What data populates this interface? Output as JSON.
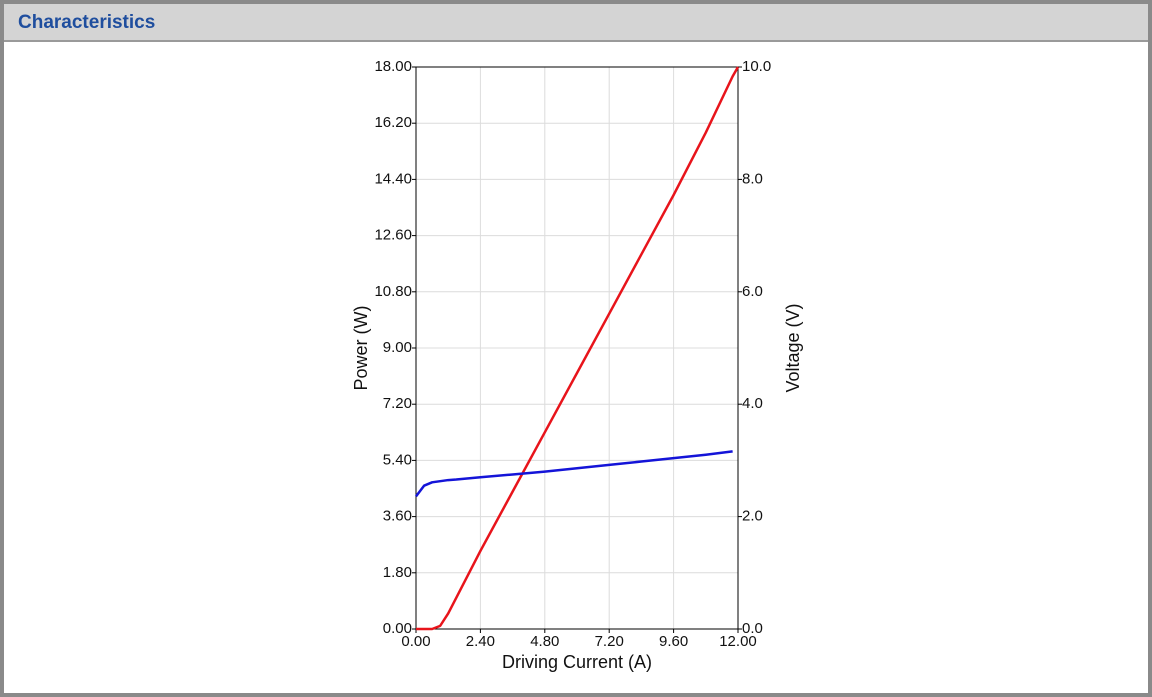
{
  "panel": {
    "title": "Characteristics"
  },
  "chart_data": {
    "type": "line",
    "x_label": "Driving Current (A)",
    "y_label": "Power (W)",
    "y2_label": "Voltage (V)",
    "x": [
      0,
      0.3,
      0.6,
      0.9,
      1.2,
      1.5,
      2.4,
      3.6,
      4.8,
      6.0,
      7.2,
      8.4,
      9.6,
      10.8,
      11.8,
      12.0
    ],
    "series": [
      {
        "name": "Power",
        "color": "#e8141b",
        "values": [
          0,
          0,
          0,
          0.1,
          0.5,
          1.0,
          2.5,
          4.4,
          6.3,
          8.2,
          10.1,
          12.0,
          13.9,
          15.9,
          17.7,
          18.0
        ]
      },
      {
        "name": "Voltage",
        "color": "#1414d8",
        "axis": "y2",
        "values": [
          2.36,
          2.55,
          2.61,
          2.63,
          2.65,
          2.66,
          2.7,
          2.75,
          2.8,
          2.86,
          2.92,
          2.98,
          3.04,
          3.1,
          3.16,
          null
        ]
      }
    ],
    "xlim": [
      0,
      12
    ],
    "ylim": [
      0,
      18
    ],
    "y2lim": [
      0,
      10
    ],
    "xticks": [
      {
        "value": 0,
        "label": "0.00"
      },
      {
        "value": 2.4,
        "label": "2.40"
      },
      {
        "value": 4.8,
        "label": "4.80"
      },
      {
        "value": 7.2,
        "label": "7.20"
      },
      {
        "value": 9.6,
        "label": "9.60"
      },
      {
        "value": 12,
        "label": "12.00"
      }
    ],
    "yticks": [
      {
        "value": 0,
        "label": "0.00"
      },
      {
        "value": 1.8,
        "label": "1.80"
      },
      {
        "value": 3.6,
        "label": "3.60"
      },
      {
        "value": 5.4,
        "label": "5.40"
      },
      {
        "value": 7.2,
        "label": "7.20"
      },
      {
        "value": 9,
        "label": "9.00"
      },
      {
        "value": 10.8,
        "label": "10.80"
      },
      {
        "value": 12.6,
        "label": "12.60"
      },
      {
        "value": 14.4,
        "label": "14.40"
      },
      {
        "value": 16.2,
        "label": "16.20"
      },
      {
        "value": 18,
        "label": "18.00"
      }
    ],
    "y2ticks": [
      {
        "value": 0,
        "label": "0.0"
      },
      {
        "value": 2,
        "label": "2.0"
      },
      {
        "value": 4,
        "label": "4.0"
      },
      {
        "value": 6,
        "label": "6.0"
      },
      {
        "value": 8,
        "label": "8.0"
      },
      {
        "value": 10,
        "label": "10.0"
      }
    ],
    "grid": true
  }
}
